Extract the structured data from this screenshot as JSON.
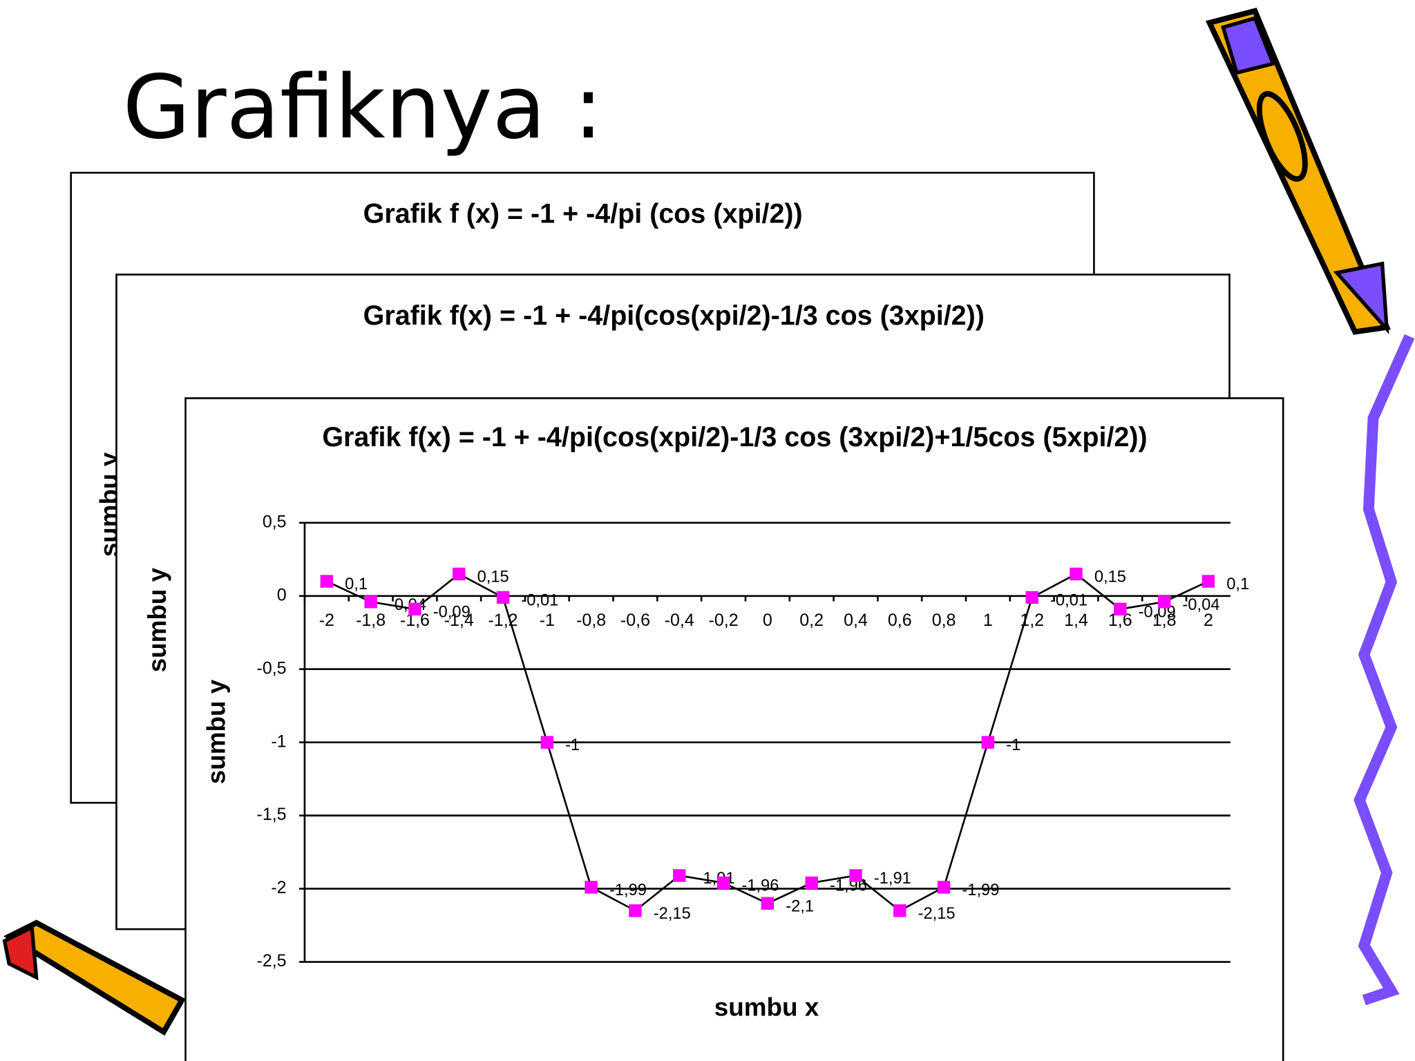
{
  "slide_title": "Grafiknya :",
  "chart_data": [
    {
      "type": "line",
      "title": "Grafik f (x) = -1 + -4/pi (cos (xpi/2))",
      "y_label": "sumbu y"
    },
    {
      "type": "line",
      "title": "Grafik f(x) = -1 + -4/pi(cos(xpi/2)-1/3 cos (3xpi/2))",
      "y_label": "sumbu y"
    },
    {
      "type": "line",
      "title": "Grafik f(x) = -1 + -4/pi(cos(xpi/2)-1/3 cos (3xpi/2)+1/5cos (5xpi/2))",
      "x_label": "sumbu x",
      "y_label": "sumbu y",
      "categories": [
        "-2",
        "-1,8",
        "-1,6",
        "-1,4",
        "-1,2",
        "-1",
        "-0,8",
        "-0,6",
        "-0,4",
        "-0,2",
        "0",
        "0,2",
        "0,4",
        "0,6",
        "0,8",
        "1",
        "1,2",
        "1,4",
        "1,6",
        "1,8",
        "2"
      ],
      "series": [
        {
          "name": "f(x)",
          "color": "#ff00ff",
          "values": [
            0.1,
            -0.04,
            -0.09,
            0.15,
            -0.01,
            -1,
            -1.99,
            -2.15,
            -1.91,
            -1.96,
            -2.1,
            -1.96,
            -1.91,
            -2.15,
            -1.99,
            -1,
            -0.01,
            0.15,
            -0.09,
            -0.04,
            0.1
          ],
          "value_labels": [
            "0,1",
            "-0,04",
            "-0,09",
            "0,15",
            "-0,01",
            "-1",
            "-1,99",
            "-2,15",
            "-1,91",
            "-1,96",
            "-2,1",
            "-1,96",
            "-1,91",
            "-2,15",
            "-1,99",
            "-1",
            "-0,01",
            "0,15",
            "-0,09",
            "-0,04",
            "0,1"
          ]
        }
      ],
      "ylim": [
        -2.5,
        0.5
      ],
      "yticks": [
        {
          "value": 0.5,
          "label": "0,5"
        },
        0,
        {
          "value": -0.5,
          "label": "-0,5"
        },
        -1,
        {
          "value": -1.5,
          "label": "-1,5"
        },
        -2,
        {
          "value": -2.5,
          "label": "-2,5"
        }
      ],
      "grid": true
    }
  ]
}
